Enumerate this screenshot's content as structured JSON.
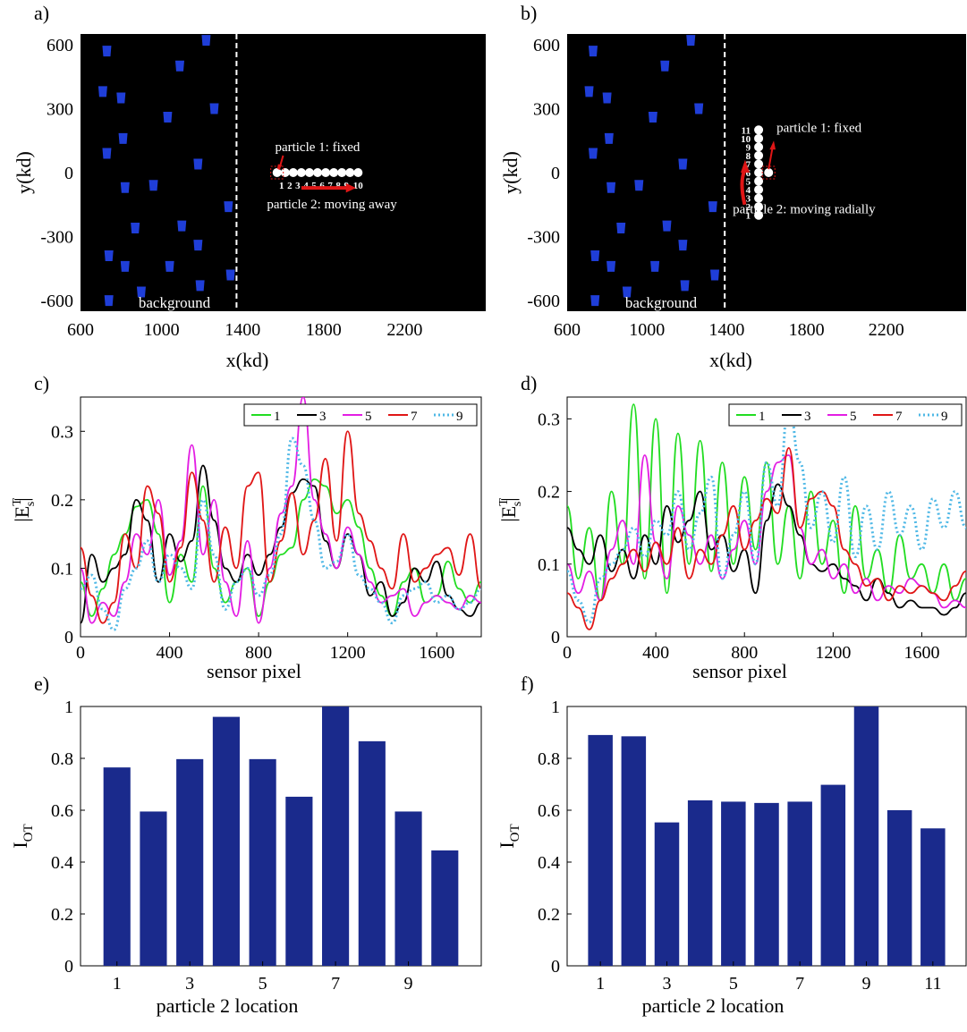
{
  "chart_data": [
    {
      "id": "a",
      "panel_label": "a)",
      "type": "scatter",
      "xlabel": "x(kd)",
      "ylabel": "y(kd)",
      "xlim": [
        600,
        2600
      ],
      "ylim": [
        -650,
        650
      ],
      "xticks": [
        "600",
        "1000",
        "1400",
        "1800",
        "2200"
      ],
      "yticks": [
        "600",
        "300",
        "0",
        "-300",
        "-600"
      ],
      "background_color": "#000000",
      "scatterer_color": "#1f3ed8",
      "scatterers": [
        [
          730,
          570
        ],
        [
          1220,
          620
        ],
        [
          1090,
          500
        ],
        [
          710,
          380
        ],
        [
          800,
          350
        ],
        [
          1260,
          300
        ],
        [
          1030,
          260
        ],
        [
          810,
          160
        ],
        [
          730,
          90
        ],
        [
          1180,
          40
        ],
        [
          820,
          -70
        ],
        [
          960,
          -60
        ],
        [
          1330,
          -160
        ],
        [
          870,
          -260
        ],
        [
          1100,
          -250
        ],
        [
          1180,
          -340
        ],
        [
          740,
          -390
        ],
        [
          820,
          -440
        ],
        [
          1040,
          -440
        ],
        [
          1340,
          -480
        ],
        [
          1190,
          -530
        ],
        [
          900,
          -560
        ],
        [
          740,
          -600
        ]
      ],
      "divider_x": 1370,
      "background_label": "background",
      "fixed_label": "particle 1: fixed",
      "moving_label": "particle 2: moving away",
      "location_labels": [
        "1",
        "2",
        "3",
        "4",
        "5",
        "6",
        "7",
        "8",
        "9",
        "10"
      ],
      "particles": [
        [
          1570,
          0
        ],
        [
          1610,
          0
        ],
        [
          1650,
          0
        ],
        [
          1690,
          0
        ],
        [
          1730,
          0
        ],
        [
          1770,
          0
        ],
        [
          1810,
          0
        ],
        [
          1850,
          0
        ],
        [
          1890,
          0
        ],
        [
          1930,
          0
        ],
        [
          1970,
          0
        ]
      ]
    },
    {
      "id": "b",
      "panel_label": "b)",
      "type": "scatter",
      "xlabel": "x(kd)",
      "ylabel": "y(kd)",
      "xlim": [
        600,
        2600
      ],
      "ylim": [
        -650,
        650
      ],
      "xticks": [
        "600",
        "1000",
        "1400",
        "1800",
        "2200"
      ],
      "yticks": [
        "600",
        "300",
        "0",
        "-300",
        "-600"
      ],
      "background_color": "#000000",
      "scatterer_color": "#1f3ed8",
      "scatterers": [
        [
          730,
          570
        ],
        [
          1220,
          620
        ],
        [
          1090,
          500
        ],
        [
          710,
          380
        ],
        [
          800,
          350
        ],
        [
          1260,
          300
        ],
        [
          1030,
          260
        ],
        [
          810,
          160
        ],
        [
          730,
          90
        ],
        [
          1180,
          40
        ],
        [
          820,
          -70
        ],
        [
          960,
          -60
        ],
        [
          1330,
          -160
        ],
        [
          870,
          -260
        ],
        [
          1100,
          -250
        ],
        [
          1180,
          -340
        ],
        [
          740,
          -390
        ],
        [
          820,
          -440
        ],
        [
          1040,
          -440
        ],
        [
          1340,
          -480
        ],
        [
          1190,
          -530
        ],
        [
          900,
          -560
        ],
        [
          740,
          -600
        ]
      ],
      "divider_x": 1390,
      "background_label": "background",
      "fixed_label": "particle 1: fixed",
      "moving_label": "particle 2: moving radially",
      "location_labels": [
        "1",
        "2",
        "3",
        "4",
        "5",
        "6",
        "7",
        "8",
        "9",
        "10",
        "11"
      ],
      "particles": [
        [
          1560,
          -200
        ],
        [
          1560,
          -160
        ],
        [
          1560,
          -120
        ],
        [
          1560,
          -80
        ],
        [
          1560,
          -40
        ],
        [
          1560,
          0
        ],
        [
          1560,
          40
        ],
        [
          1560,
          80
        ],
        [
          1560,
          120
        ],
        [
          1560,
          160
        ],
        [
          1560,
          200
        ],
        [
          1610,
          0
        ]
      ]
    },
    {
      "id": "c",
      "panel_label": "c)",
      "type": "line",
      "xlabel": "sensor pixel",
      "ylabel_main": "|E",
      "ylabel_sup": "T",
      "ylabel_sub": "s",
      "ylabel_end": "|",
      "xlim": [
        0,
        1800
      ],
      "ylim": [
        0,
        0.35
      ],
      "xticks": [
        "0",
        "400",
        "800",
        "1200",
        "1600"
      ],
      "yticks": [
        "0",
        "0.1",
        "0.2",
        "0.3"
      ],
      "x": [
        0,
        50,
        100,
        150,
        200,
        250,
        300,
        350,
        400,
        450,
        500,
        550,
        600,
        650,
        700,
        750,
        800,
        850,
        900,
        950,
        1000,
        1050,
        1100,
        1150,
        1200,
        1250,
        1300,
        1350,
        1400,
        1450,
        1500,
        1550,
        1600,
        1650,
        1700,
        1750,
        1800
      ],
      "series": [
        {
          "name": "1",
          "color": "#22dd22",
          "style": "solid",
          "values": [
            0.08,
            0.03,
            0.07,
            0.12,
            0.15,
            0.19,
            0.2,
            0.15,
            0.05,
            0.12,
            0.08,
            0.22,
            0.1,
            0.05,
            0.08,
            0.1,
            0.03,
            0.08,
            0.12,
            0.13,
            0.2,
            0.23,
            0.22,
            0.18,
            0.2,
            0.16,
            0.1,
            0.06,
            0.03,
            0.08,
            0.1,
            0.05,
            0.06,
            0.11,
            0.07,
            0.05,
            0.08
          ]
        },
        {
          "name": "3",
          "color": "#000000",
          "style": "solid",
          "values": [
            0.02,
            0.12,
            0.08,
            0.1,
            0.12,
            0.2,
            0.17,
            0.08,
            0.15,
            0.11,
            0.14,
            0.25,
            0.17,
            0.1,
            0.08,
            0.12,
            0.09,
            0.12,
            0.16,
            0.21,
            0.23,
            0.22,
            0.14,
            0.1,
            0.15,
            0.12,
            0.06,
            0.08,
            0.03,
            0.05,
            0.1,
            0.08,
            0.11,
            0.06,
            0.04,
            0.03,
            0.05
          ]
        },
        {
          "name": "5",
          "color": "#e31ee3",
          "style": "solid",
          "values": [
            0.1,
            0.02,
            0.05,
            0.03,
            0.08,
            0.15,
            0.12,
            0.2,
            0.09,
            0.14,
            0.28,
            0.12,
            0.2,
            0.08,
            0.03,
            0.14,
            0.02,
            0.1,
            0.18,
            0.22,
            0.35,
            0.2,
            0.15,
            0.1,
            0.16,
            0.12,
            0.08,
            0.05,
            0.06,
            0.07,
            0.03,
            0.05,
            0.06,
            0.05,
            0.04,
            0.06,
            0.05
          ]
        },
        {
          "name": "7",
          "color": "#e01616",
          "style": "solid",
          "values": [
            0.13,
            0.06,
            0.02,
            0.05,
            0.15,
            0.1,
            0.22,
            0.18,
            0.08,
            0.13,
            0.24,
            0.17,
            0.08,
            0.16,
            0.1,
            0.22,
            0.24,
            0.08,
            0.14,
            0.21,
            0.12,
            0.17,
            0.26,
            0.14,
            0.3,
            0.18,
            0.14,
            0.1,
            0.07,
            0.15,
            0.08,
            0.1,
            0.12,
            0.13,
            0.09,
            0.15,
            0.07
          ]
        },
        {
          "name": "9",
          "color": "#4fb8e6",
          "style": "dotted",
          "values": [
            0.07,
            0.09,
            0.04,
            0.01,
            0.07,
            0.1,
            0.14,
            0.08,
            0.12,
            0.1,
            0.07,
            0.2,
            0.12,
            0.04,
            0.08,
            0.1,
            0.06,
            0.09,
            0.15,
            0.29,
            0.25,
            0.17,
            0.1,
            0.11,
            0.15,
            0.09,
            0.07,
            0.05,
            0.02,
            0.06,
            0.07,
            0.08,
            0.05,
            0.06,
            0.04,
            0.05,
            0.07
          ]
        }
      ],
      "legend_position": "top-right"
    },
    {
      "id": "d",
      "panel_label": "d)",
      "type": "line",
      "xlabel": "sensor pixel",
      "ylabel_main": "|E",
      "ylabel_sup": "T",
      "ylabel_sub": "s",
      "ylabel_end": "|",
      "xlim": [
        0,
        1800
      ],
      "ylim": [
        0,
        0.33
      ],
      "xticks": [
        "0",
        "400",
        "800",
        "1200",
        "1600"
      ],
      "yticks": [
        "0",
        "0.1",
        "0.2",
        "0.3"
      ],
      "x": [
        0,
        50,
        100,
        150,
        200,
        250,
        300,
        350,
        400,
        450,
        500,
        550,
        600,
        650,
        700,
        750,
        800,
        850,
        900,
        950,
        1000,
        1050,
        1100,
        1150,
        1200,
        1250,
        1300,
        1350,
        1400,
        1450,
        1500,
        1550,
        1600,
        1650,
        1700,
        1750,
        1800
      ],
      "series": [
        {
          "name": "1",
          "color": "#22dd22",
          "style": "solid",
          "values": [
            0.18,
            0.08,
            0.15,
            0.05,
            0.2,
            0.1,
            0.32,
            0.08,
            0.3,
            0.06,
            0.28,
            0.1,
            0.27,
            0.09,
            0.24,
            0.1,
            0.22,
            0.12,
            0.24,
            0.1,
            0.18,
            0.08,
            0.2,
            0.1,
            0.16,
            0.06,
            0.18,
            0.08,
            0.12,
            0.06,
            0.14,
            0.08,
            0.1,
            0.06,
            0.1,
            0.05,
            0.08
          ]
        },
        {
          "name": "3",
          "color": "#000000",
          "style": "solid",
          "values": [
            0.15,
            0.12,
            0.1,
            0.14,
            0.09,
            0.12,
            0.08,
            0.14,
            0.1,
            0.18,
            0.13,
            0.16,
            0.2,
            0.12,
            0.14,
            0.09,
            0.12,
            0.06,
            0.16,
            0.21,
            0.18,
            0.14,
            0.1,
            0.09,
            0.1,
            0.08,
            0.07,
            0.05,
            0.08,
            0.06,
            0.04,
            0.05,
            0.04,
            0.04,
            0.03,
            0.04,
            0.06
          ]
        },
        {
          "name": "5",
          "color": "#e31ee3",
          "style": "solid",
          "values": [
            0.1,
            0.06,
            0.09,
            0.05,
            0.12,
            0.16,
            0.1,
            0.25,
            0.13,
            0.08,
            0.18,
            0.14,
            0.1,
            0.14,
            0.08,
            0.12,
            0.16,
            0.1,
            0.2,
            0.24,
            0.25,
            0.15,
            0.1,
            0.12,
            0.08,
            0.1,
            0.06,
            0.08,
            0.05,
            0.07,
            0.06,
            0.08,
            0.07,
            0.06,
            0.04,
            0.05,
            0.04
          ]
        },
        {
          "name": "7",
          "color": "#e01616",
          "style": "solid",
          "values": [
            0.06,
            0.04,
            0.01,
            0.05,
            0.08,
            0.1,
            0.12,
            0.09,
            0.13,
            0.1,
            0.15,
            0.08,
            0.12,
            0.1,
            0.14,
            0.18,
            0.12,
            0.16,
            0.19,
            0.17,
            0.26,
            0.15,
            0.19,
            0.2,
            0.18,
            0.12,
            0.1,
            0.07,
            0.08,
            0.05,
            0.07,
            0.06,
            0.07,
            0.06,
            0.05,
            0.07,
            0.09
          ]
        },
        {
          "name": "9",
          "color": "#4fb8e6",
          "style": "dotted",
          "values": [
            0.09,
            0.05,
            0.02,
            0.08,
            0.1,
            0.12,
            0.15,
            0.11,
            0.16,
            0.14,
            0.2,
            0.12,
            0.17,
            0.22,
            0.08,
            0.14,
            0.2,
            0.1,
            0.24,
            0.18,
            0.32,
            0.24,
            0.15,
            0.2,
            0.13,
            0.22,
            0.11,
            0.18,
            0.12,
            0.2,
            0.14,
            0.18,
            0.12,
            0.19,
            0.15,
            0.2,
            0.15
          ]
        }
      ],
      "legend_position": "top-right"
    },
    {
      "id": "e",
      "panel_label": "e)",
      "type": "bar",
      "xlabel": "particle 2 location",
      "ylabel_main": "I",
      "ylabel_sub": "OT",
      "ylim": [
        0,
        1
      ],
      "yticks": [
        "0",
        "0.2",
        "0.4",
        "0.6",
        "0.8",
        "1"
      ],
      "xtick_labels": [
        "1",
        "3",
        "5",
        "7",
        "9"
      ],
      "categories": [
        "1",
        "2",
        "3",
        "4",
        "5",
        "6",
        "7",
        "8",
        "9",
        "10"
      ],
      "values": [
        0.765,
        0.595,
        0.797,
        0.96,
        0.797,
        0.652,
        1.0,
        0.866,
        0.595,
        0.445
      ],
      "bar_color": "#1a2a8c"
    },
    {
      "id": "f",
      "panel_label": "f)",
      "type": "bar",
      "xlabel": "particle 2 location",
      "ylabel_main": "I",
      "ylabel_sub": "OT",
      "ylim": [
        0,
        1
      ],
      "yticks": [
        "0",
        "0.2",
        "0.4",
        "0.6",
        "0.8",
        "1"
      ],
      "xtick_labels": [
        "1",
        "3",
        "5",
        "7",
        "9",
        "11"
      ],
      "categories": [
        "1",
        "2",
        "3",
        "4",
        "5",
        "6",
        "7",
        "8",
        "9",
        "10",
        "11"
      ],
      "values": [
        0.89,
        0.885,
        0.553,
        0.638,
        0.633,
        0.628,
        0.633,
        0.698,
        1.0,
        0.6,
        0.53
      ],
      "bar_color": "#1a2a8c"
    }
  ]
}
